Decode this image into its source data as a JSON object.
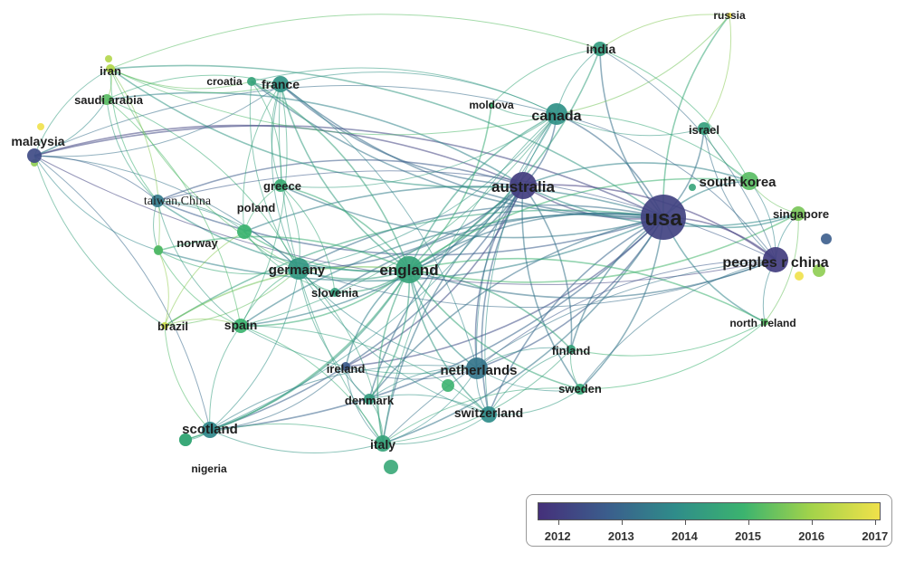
{
  "legend": {
    "years": [
      "2012",
      "2013",
      "2014",
      "2015",
      "2016",
      "2017"
    ],
    "gradient_colors": [
      "#45307a",
      "#3b5d8c",
      "#2f8c8a",
      "#3bb36f",
      "#a3d34a",
      "#f0e14a"
    ]
  },
  "nodes": [
    {
      "id": "usa",
      "label": "usa",
      "year": 2012.4
    },
    {
      "id": "australia",
      "label": "australia",
      "year": 2012.3
    },
    {
      "id": "england",
      "label": "england",
      "year": 2014.6
    },
    {
      "id": "peoples_china",
      "label": "peoples r china",
      "year": 2012.3
    },
    {
      "id": "canada",
      "label": "canada",
      "year": 2014.1
    },
    {
      "id": "netherlands",
      "label": "netherlands",
      "year": 2013.5
    },
    {
      "id": "germany",
      "label": "germany",
      "year": 2014.3
    },
    {
      "id": "south_korea",
      "label": "south korea",
      "year": 2015.3
    },
    {
      "id": "singapore",
      "label": "singapore",
      "year": 2015.6
    },
    {
      "id": "india",
      "label": "india",
      "year": 2014.4
    },
    {
      "id": "russia",
      "label": "russia",
      "year": 2017.0
    },
    {
      "id": "israel",
      "label": "israel",
      "year": 2014.5
    },
    {
      "id": "france",
      "label": "france",
      "year": 2014.2
    },
    {
      "id": "croatia",
      "label": "croatia",
      "year": 2014.6
    },
    {
      "id": "iran",
      "label": "iran",
      "year": 2016.2
    },
    {
      "id": "saudi_arabia",
      "label": "saudi arabia",
      "year": 2015.3
    },
    {
      "id": "malaysia",
      "label": "malaysia",
      "year": 2012.6
    },
    {
      "id": "moldova",
      "label": "moldova",
      "year": 2015.0
    },
    {
      "id": "taiwan_china",
      "label": "taiwan,China",
      "year": 2013.6
    },
    {
      "id": "greece",
      "label": "greece",
      "year": 2014.8
    },
    {
      "id": "poland",
      "label": "poland",
      "year": 2015.0
    },
    {
      "id": "norway",
      "label": "norway",
      "year": 2015.2
    },
    {
      "id": "slovenia",
      "label": "slovenia",
      "year": 2014.5
    },
    {
      "id": "brazil",
      "label": "brazil",
      "year": 2016.5
    },
    {
      "id": "spain",
      "label": "spain",
      "year": 2015.0
    },
    {
      "id": "ireland",
      "label": "ireland",
      "year": 2012.9
    },
    {
      "id": "denmark",
      "label": "denmark",
      "year": 2014.4
    },
    {
      "id": "switzerland",
      "label": "switzerland",
      "year": 2014.0
    },
    {
      "id": "italy",
      "label": "italy",
      "year": 2014.6
    },
    {
      "id": "scotland",
      "label": "scotland",
      "year": 2013.9
    },
    {
      "id": "nigeria",
      "label": "nigeria",
      "year": 2014.7
    },
    {
      "id": "finland",
      "label": "finland",
      "year": 2014.6
    },
    {
      "id": "sweden",
      "label": "sweden",
      "year": 2014.7
    },
    {
      "id": "north_ireland",
      "label": "north ireland",
      "year": 2015.3
    }
  ],
  "links": [
    [
      "usa",
      "australia"
    ],
    [
      "usa",
      "england"
    ],
    [
      "usa",
      "peoples_china"
    ],
    [
      "usa",
      "canada"
    ],
    [
      "usa",
      "netherlands"
    ],
    [
      "usa",
      "germany"
    ],
    [
      "usa",
      "south_korea"
    ],
    [
      "usa",
      "singapore"
    ],
    [
      "usa",
      "india"
    ],
    [
      "usa",
      "israel"
    ],
    [
      "usa",
      "france"
    ],
    [
      "usa",
      "malaysia"
    ],
    [
      "usa",
      "taiwan_china"
    ],
    [
      "usa",
      "spain"
    ],
    [
      "usa",
      "italy"
    ],
    [
      "usa",
      "switzerland"
    ],
    [
      "usa",
      "scotland"
    ],
    [
      "usa",
      "finland"
    ],
    [
      "usa",
      "sweden"
    ],
    [
      "usa",
      "north_ireland"
    ],
    [
      "usa",
      "ireland"
    ],
    [
      "usa",
      "denmark"
    ],
    [
      "usa",
      "greece"
    ],
    [
      "usa",
      "poland"
    ],
    [
      "usa",
      "norway"
    ],
    [
      "usa",
      "brazil"
    ],
    [
      "usa",
      "croatia"
    ],
    [
      "usa",
      "iran"
    ],
    [
      "usa",
      "russia"
    ],
    [
      "usa",
      "slovenia"
    ],
    [
      "australia",
      "england"
    ],
    [
      "australia",
      "canada"
    ],
    [
      "australia",
      "peoples_china"
    ],
    [
      "australia",
      "netherlands"
    ],
    [
      "australia",
      "germany"
    ],
    [
      "australia",
      "malaysia"
    ],
    [
      "australia",
      "south_korea"
    ],
    [
      "australia",
      "singapore"
    ],
    [
      "australia",
      "spain"
    ],
    [
      "australia",
      "italy"
    ],
    [
      "australia",
      "scotland"
    ],
    [
      "australia",
      "switzerland"
    ],
    [
      "australia",
      "france"
    ],
    [
      "australia",
      "taiwan_china"
    ],
    [
      "australia",
      "ireland"
    ],
    [
      "australia",
      "sweden"
    ],
    [
      "australia",
      "finland"
    ],
    [
      "australia",
      "denmark"
    ],
    [
      "australia",
      "iran"
    ],
    [
      "australia",
      "saudi_arabia"
    ],
    [
      "england",
      "canada"
    ],
    [
      "england",
      "netherlands"
    ],
    [
      "england",
      "germany"
    ],
    [
      "england",
      "peoples_china"
    ],
    [
      "england",
      "spain"
    ],
    [
      "england",
      "italy"
    ],
    [
      "england",
      "scotland"
    ],
    [
      "england",
      "switzerland"
    ],
    [
      "england",
      "france"
    ],
    [
      "england",
      "greece"
    ],
    [
      "england",
      "poland"
    ],
    [
      "england",
      "norway"
    ],
    [
      "england",
      "slovenia"
    ],
    [
      "england",
      "ireland"
    ],
    [
      "england",
      "denmark"
    ],
    [
      "england",
      "sweden"
    ],
    [
      "england",
      "finland"
    ],
    [
      "england",
      "brazil"
    ],
    [
      "england",
      "nigeria"
    ],
    [
      "england",
      "croatia"
    ],
    [
      "england",
      "taiwan_china"
    ],
    [
      "england",
      "india"
    ],
    [
      "england",
      "south_korea"
    ],
    [
      "england",
      "singapore"
    ],
    [
      "england",
      "north_ireland"
    ],
    [
      "england",
      "moldova"
    ],
    [
      "canada",
      "peoples_china"
    ],
    [
      "canada",
      "netherlands"
    ],
    [
      "canada",
      "germany"
    ],
    [
      "canada",
      "france"
    ],
    [
      "canada",
      "india"
    ],
    [
      "canada",
      "israel"
    ],
    [
      "canada",
      "south_korea"
    ],
    [
      "canada",
      "italy"
    ],
    [
      "canada",
      "spain"
    ],
    [
      "canada",
      "switzerland"
    ],
    [
      "canada",
      "scotland"
    ],
    [
      "canada",
      "malaysia"
    ],
    [
      "canada",
      "iran"
    ],
    [
      "canada",
      "croatia"
    ],
    [
      "canada",
      "greece"
    ],
    [
      "canada",
      "russia"
    ],
    [
      "canada",
      "moldova"
    ],
    [
      "peoples_china",
      "south_korea"
    ],
    [
      "peoples_china",
      "singapore"
    ],
    [
      "peoples_china",
      "netherlands"
    ],
    [
      "peoples_china",
      "germany"
    ],
    [
      "peoples_china",
      "taiwan_china"
    ],
    [
      "peoples_china",
      "malaysia"
    ],
    [
      "peoples_china",
      "north_ireland"
    ],
    [
      "peoples_china",
      "israel"
    ],
    [
      "peoples_china",
      "india"
    ],
    [
      "netherlands",
      "germany"
    ],
    [
      "netherlands",
      "switzerland"
    ],
    [
      "netherlands",
      "italy"
    ],
    [
      "netherlands",
      "sweden"
    ],
    [
      "netherlands",
      "finland"
    ],
    [
      "netherlands",
      "denmark"
    ],
    [
      "netherlands",
      "spain"
    ],
    [
      "netherlands",
      "scotland"
    ],
    [
      "netherlands",
      "ireland"
    ],
    [
      "netherlands",
      "france"
    ],
    [
      "germany",
      "france"
    ],
    [
      "germany",
      "spain"
    ],
    [
      "germany",
      "italy"
    ],
    [
      "germany",
      "switzerland"
    ],
    [
      "germany",
      "poland"
    ],
    [
      "germany",
      "greece"
    ],
    [
      "germany",
      "norway"
    ],
    [
      "germany",
      "slovenia"
    ],
    [
      "germany",
      "croatia"
    ],
    [
      "germany",
      "taiwan_china"
    ],
    [
      "germany",
      "brazil"
    ],
    [
      "germany",
      "saudi_arabia"
    ],
    [
      "germany",
      "iran"
    ],
    [
      "germany",
      "malaysia"
    ],
    [
      "germany",
      "scotland"
    ],
    [
      "germany",
      "denmark"
    ],
    [
      "france",
      "croatia"
    ],
    [
      "france",
      "greece"
    ],
    [
      "france",
      "spain"
    ],
    [
      "france",
      "italy"
    ],
    [
      "france",
      "iran"
    ],
    [
      "france",
      "saudi_arabia"
    ],
    [
      "france",
      "malaysia"
    ],
    [
      "france",
      "poland"
    ],
    [
      "malaysia",
      "iran"
    ],
    [
      "malaysia",
      "saudi_arabia"
    ],
    [
      "malaysia",
      "taiwan_china"
    ],
    [
      "malaysia",
      "norway"
    ],
    [
      "malaysia",
      "scotland"
    ],
    [
      "malaysia",
      "brazil"
    ],
    [
      "iran",
      "saudi_arabia"
    ],
    [
      "iran",
      "croatia"
    ],
    [
      "iran",
      "india"
    ],
    [
      "iran",
      "taiwan_china"
    ],
    [
      "iran",
      "norway"
    ],
    [
      "saudi_arabia",
      "taiwan_china"
    ],
    [
      "saudi_arabia",
      "spain"
    ],
    [
      "taiwan_china",
      "norway"
    ],
    [
      "taiwan_china",
      "poland"
    ],
    [
      "taiwan_china",
      "spain"
    ],
    [
      "spain",
      "italy"
    ],
    [
      "spain",
      "scotland"
    ],
    [
      "spain",
      "norway"
    ],
    [
      "spain",
      "brazil"
    ],
    [
      "spain",
      "switzerland"
    ],
    [
      "italy",
      "switzerland"
    ],
    [
      "italy",
      "scotland"
    ],
    [
      "italy",
      "denmark"
    ],
    [
      "italy",
      "ireland"
    ],
    [
      "italy",
      "nigeria"
    ],
    [
      "italy",
      "sweden"
    ],
    [
      "italy",
      "finland"
    ],
    [
      "italy",
      "peoples_china"
    ],
    [
      "switzerland",
      "sweden"
    ],
    [
      "switzerland",
      "finland"
    ],
    [
      "switzerland",
      "denmark"
    ],
    [
      "scotland",
      "nigeria"
    ],
    [
      "scotland",
      "ireland"
    ],
    [
      "scotland",
      "brazil"
    ],
    [
      "south_korea",
      "singapore"
    ],
    [
      "south_korea",
      "israel"
    ],
    [
      "south_korea",
      "india"
    ],
    [
      "singapore",
      "north_ireland"
    ],
    [
      "israel",
      "russia"
    ],
    [
      "india",
      "russia"
    ],
    [
      "india",
      "moldova"
    ],
    [
      "sweden",
      "finland"
    ],
    [
      "sweden",
      "north_ireland"
    ],
    [
      "sweden",
      "peoples_china"
    ],
    [
      "greece",
      "poland"
    ],
    [
      "greece",
      "slovenia"
    ],
    [
      "greece",
      "croatia"
    ],
    [
      "norway",
      "brazil"
    ],
    [
      "poland",
      "slovenia"
    ],
    [
      "brazil",
      "poland"
    ],
    [
      "finland",
      "north_ireland"
    ],
    [
      "denmark",
      "ireland"
    ]
  ]
}
